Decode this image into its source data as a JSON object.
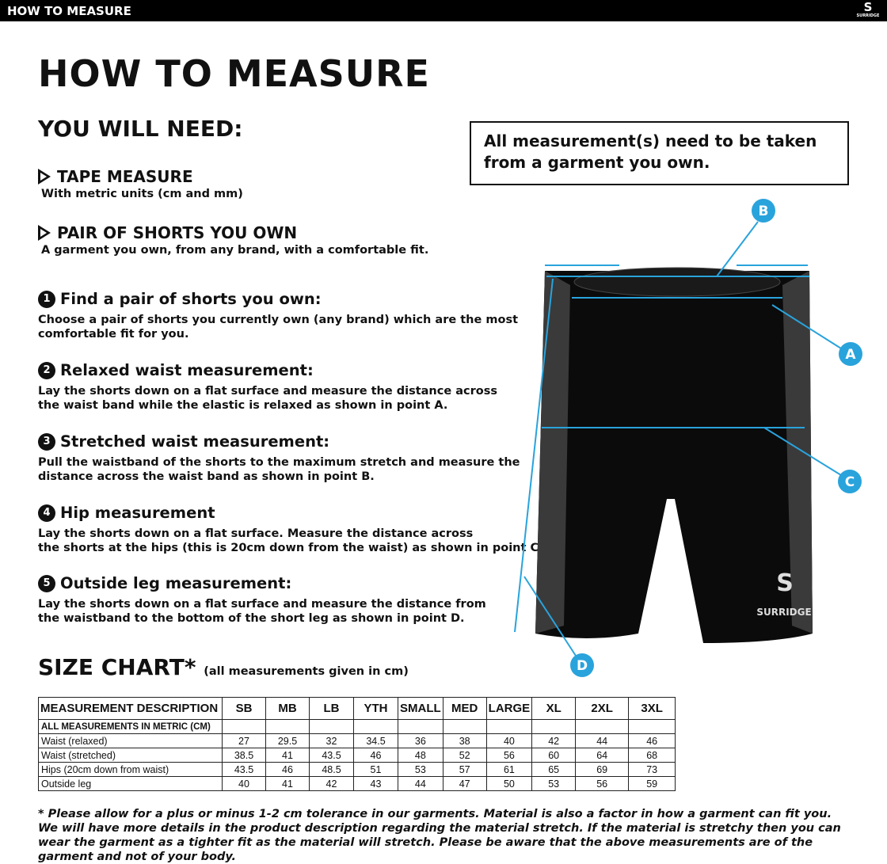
{
  "header": {
    "title": "HOW TO MEASURE",
    "logo_text": "SURRIDGE"
  },
  "title": "HOW TO MEASURE",
  "you_will_need": {
    "heading": "YOU WILL NEED:",
    "items": [
      {
        "label": "TAPE MEASURE",
        "sub": "With metric units (cm and mm)"
      },
      {
        "label": "PAIR OF SHORTS YOU OWN",
        "sub": "A garment you own, from any brand, with a comfortable fit."
      }
    ]
  },
  "note_box": "All measurement(s) need to be taken from a garment you own.",
  "steps": [
    {
      "num": "1",
      "title": "Find a pair of shorts you own:",
      "body": "Choose a pair of shorts you currently own (any brand) which are the most\ncomfortable fit for you."
    },
    {
      "num": "2",
      "title": "Relaxed waist measurement:",
      "body": "Lay the shorts down on a flat surface and measure the distance across\nthe waist band while the elastic is relaxed as shown in point A."
    },
    {
      "num": "3",
      "title": "Stretched waist measurement:",
      "body": "Pull the waistband of the shorts to the maximum stretch and measure the\ndistance across the waist band as shown in point B."
    },
    {
      "num": "4",
      "title": "Hip measurement",
      "body": "Lay the shorts down on a flat surface. Measure the distance across\nthe shorts at the hips (this is 20cm down from the waist)  as shown in point C."
    },
    {
      "num": "5",
      "title": "Outside leg measurement:",
      "body": "Lay the shorts down on a flat surface and measure the distance from\nthe waistband to the bottom of the short leg as shown in point D."
    }
  ],
  "diagram": {
    "markers": [
      "A",
      "B",
      "C",
      "D"
    ],
    "garment_logo": "SURRIDGE",
    "accent": "#29a3dc"
  },
  "size_chart": {
    "heading": "SIZE CHART*",
    "subheading": "(all measurements given in cm)",
    "columns": [
      "MEASUREMENT DESCRIPTION",
      "SB",
      "MB",
      "LB",
      "YTH",
      "SMALL",
      "MED",
      "LARGE",
      "XL",
      "2XL",
      "3XL"
    ],
    "section_label": "ALL MEASUREMENTS IN METRIC (CM)",
    "rows": [
      {
        "label": "Waist (relaxed)",
        "values": [
          "27",
          "29.5",
          "32",
          "34.5",
          "36",
          "38",
          "40",
          "42",
          "44",
          "46"
        ]
      },
      {
        "label": "Waist (stretched)",
        "values": [
          "38.5",
          "41",
          "43.5",
          "46",
          "48",
          "52",
          "56",
          "60",
          "64",
          "68"
        ]
      },
      {
        "label": "Hips (20cm down from waist)",
        "values": [
          "43.5",
          "46",
          "48.5",
          "51",
          "53",
          "57",
          "61",
          "65",
          "69",
          "73"
        ]
      },
      {
        "label": "Outside leg",
        "values": [
          "40",
          "41",
          "42",
          "43",
          "44",
          "47",
          "50",
          "53",
          "56",
          "59"
        ]
      }
    ]
  },
  "footnote": "* Please allow for a plus or minus 1-2 cm tolerance in our garments. Material is also a factor in how a garment can fit you. We will have more details in the product description regarding the material stretch.  If the material is stretchy then you can wear the garment as a tighter fit as the material will stretch.  Please be aware that the above measurements are of the garment and not of your body."
}
